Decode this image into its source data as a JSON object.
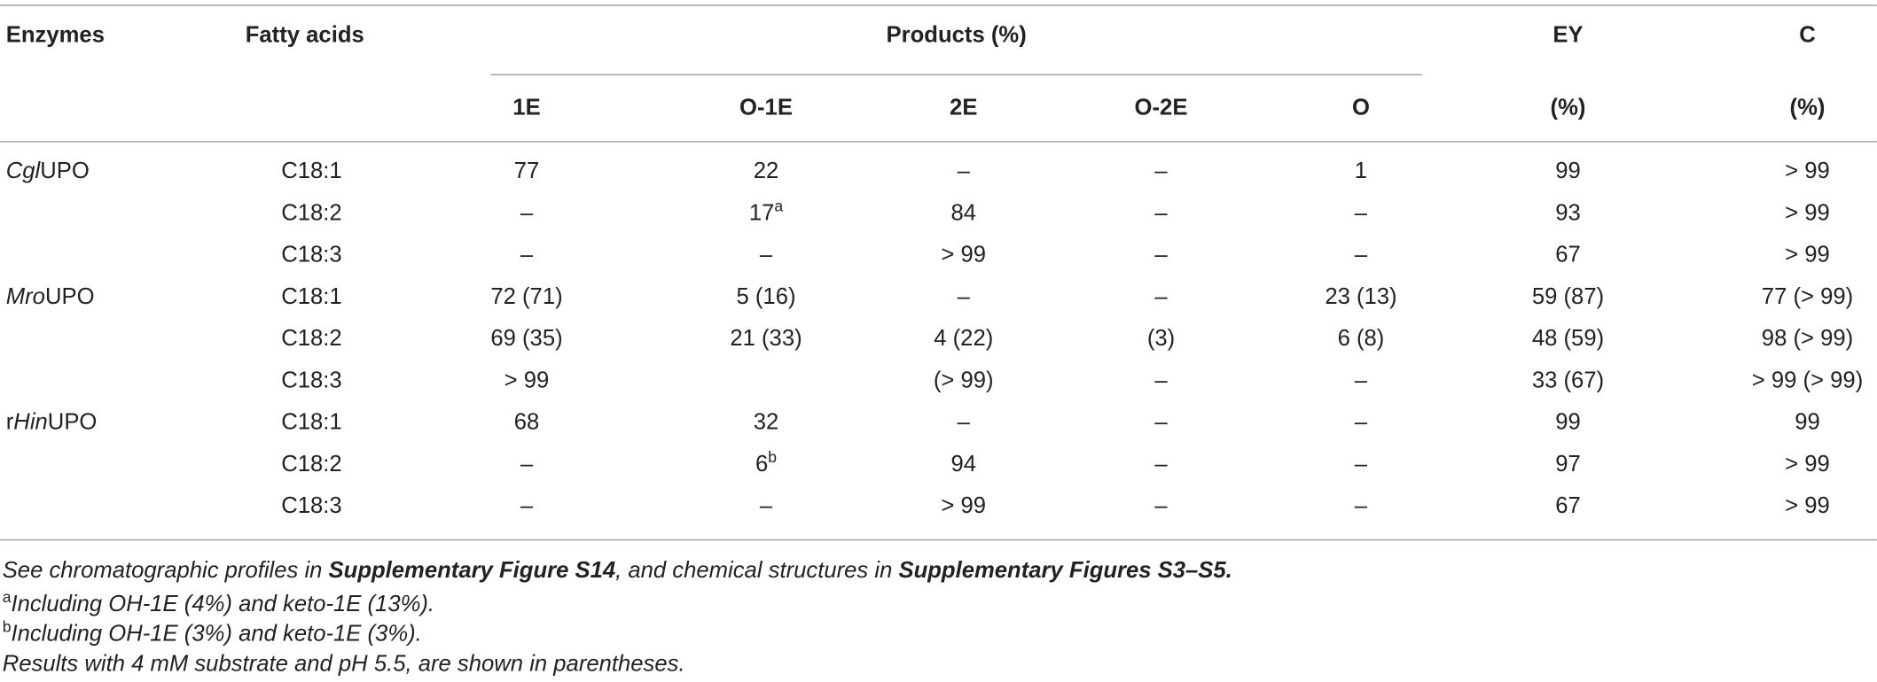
{
  "table": {
    "headers": {
      "enzymes": "Enzymes",
      "fatty_acids": "Fatty acids",
      "products": "Products (%)",
      "ey": "EY",
      "c": "C",
      "sub": [
        "1E",
        "O-1E",
        "2E",
        "O-2E",
        "O",
        "(%)",
        "(%)"
      ]
    },
    "rows": [
      {
        "enzyme": [
          {
            "text": "Cgl",
            "style": "italic"
          },
          {
            "text": "UPO",
            "style": "plain"
          }
        ],
        "fatty_acid": "C18:1",
        "cells": [
          "77",
          "22",
          "–",
          "–",
          "1",
          "99",
          "> 99"
        ]
      },
      {
        "fatty_acid": "C18:2",
        "cells": [
          "–",
          [
            {
              "text": "17",
              "style": "plain"
            },
            {
              "text": "a",
              "style": "sup"
            }
          ],
          "84",
          "–",
          "–",
          "93",
          "> 99"
        ]
      },
      {
        "fatty_acid": "C18:3",
        "cells": [
          "–",
          "–",
          "> 99",
          "–",
          "–",
          "67",
          "> 99"
        ]
      },
      {
        "enzyme": [
          {
            "text": "Mro",
            "style": "italic"
          },
          {
            "text": "UPO",
            "style": "plain"
          }
        ],
        "fatty_acid": "C18:1",
        "cells": [
          "72 (71)",
          "5 (16)",
          "–",
          "–",
          "23 (13)",
          "59 (87)",
          "77 (> 99)"
        ]
      },
      {
        "fatty_acid": "C18:2",
        "cells": [
          "69 (35)",
          "21 (33)",
          "4 (22)",
          "(3)",
          "6 (8)",
          "48 (59)",
          "98 (> 99)"
        ]
      },
      {
        "fatty_acid": "C18:3",
        "cells": [
          "> 99",
          null,
          "(> 99)",
          "–",
          "–",
          "33 (67)",
          "> 99 (> 99)"
        ]
      },
      {
        "enzyme": [
          {
            "text": "r",
            "style": "plain"
          },
          {
            "text": "Hin",
            "style": "italic"
          },
          {
            "text": "UPO",
            "style": "plain"
          }
        ],
        "fatty_acid": "C18:1",
        "cells": [
          "68",
          "32",
          "–",
          "–",
          "–",
          "99",
          "99"
        ]
      },
      {
        "fatty_acid": "C18:2",
        "cells": [
          "–",
          [
            {
              "text": "6",
              "style": "plain"
            },
            {
              "text": "b",
              "style": "sup"
            }
          ],
          "94",
          "–",
          "–",
          "97",
          "> 99"
        ]
      },
      {
        "fatty_acid": "C18:3",
        "cells": [
          "–",
          "–",
          "> 99",
          "–",
          "–",
          "67",
          "> 99"
        ]
      }
    ],
    "footnotes": [
      [
        {
          "text": "See chromatographic profiles in ",
          "style": "italic"
        },
        {
          "text": "Supplementary Figure S14",
          "style": "bold-italic"
        },
        {
          "text": ", and chemical structures in ",
          "style": "italic"
        },
        {
          "text": "Supplementary Figures S3–S5.",
          "style": "bold-italic"
        }
      ],
      [
        {
          "text": "a",
          "style": "sup"
        },
        {
          "text": "Including OH-1E (4%) and keto-1E (13%).",
          "style": "italic"
        }
      ],
      [
        {
          "text": "b",
          "style": "sup"
        },
        {
          "text": "Including OH-1E (3%) and keto-1E (3%).",
          "style": "italic"
        }
      ],
      [
        {
          "text": "Results with 4 mM substrate and pH 5.5, are shown in parentheses.",
          "style": "italic"
        }
      ]
    ]
  }
}
